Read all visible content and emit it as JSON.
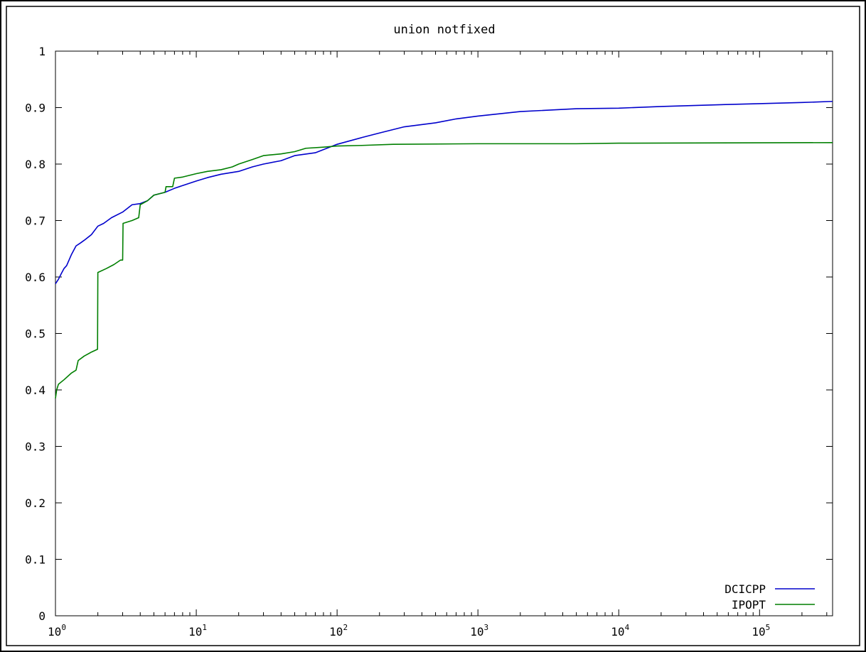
{
  "chart_data": {
    "type": "line",
    "title": "union notfixed",
    "xlabel": "",
    "ylabel": "",
    "x_scale": "log",
    "xlim": [
      1,
      330000
    ],
    "ylim": [
      0,
      1
    ],
    "grid": false,
    "legend_position": "bottom-right",
    "x_tick_labels": [
      {
        "base": "10",
        "exp": "0",
        "value": 1
      },
      {
        "base": "10",
        "exp": "1",
        "value": 10
      },
      {
        "base": "10",
        "exp": "2",
        "value": 100
      },
      {
        "base": "10",
        "exp": "3",
        "value": 1000
      },
      {
        "base": "10",
        "exp": "4",
        "value": 10000
      },
      {
        "base": "10",
        "exp": "5",
        "value": 100000
      }
    ],
    "y_tick_labels": [
      "0",
      "0.1",
      "0.2",
      "0.3",
      "0.4",
      "0.5",
      "0.6",
      "0.7",
      "0.8",
      "0.9",
      "1"
    ],
    "y_tick_values": [
      0,
      0.1,
      0.2,
      0.3,
      0.4,
      0.5,
      0.6,
      0.7,
      0.8,
      0.9,
      1
    ],
    "series": [
      {
        "name": "DCICPP",
        "color": "#0000cc",
        "points": [
          [
            1,
            0.588
          ],
          [
            1.05,
            0.596
          ],
          [
            1.1,
            0.606
          ],
          [
            1.15,
            0.615
          ],
          [
            1.2,
            0.62
          ],
          [
            1.3,
            0.64
          ],
          [
            1.4,
            0.655
          ],
          [
            1.5,
            0.66
          ],
          [
            1.6,
            0.665
          ],
          [
            1.8,
            0.675
          ],
          [
            2,
            0.69
          ],
          [
            2.2,
            0.695
          ],
          [
            2.5,
            0.705
          ],
          [
            3,
            0.715
          ],
          [
            3.5,
            0.728
          ],
          [
            4,
            0.73
          ],
          [
            4.5,
            0.735
          ],
          [
            5,
            0.745
          ],
          [
            6,
            0.75
          ],
          [
            7,
            0.757
          ],
          [
            8,
            0.762
          ],
          [
            10,
            0.77
          ],
          [
            12,
            0.776
          ],
          [
            15,
            0.782
          ],
          [
            20,
            0.787
          ],
          [
            25,
            0.795
          ],
          [
            30,
            0.8
          ],
          [
            40,
            0.806
          ],
          [
            50,
            0.815
          ],
          [
            70,
            0.82
          ],
          [
            100,
            0.835
          ],
          [
            150,
            0.847
          ],
          [
            200,
            0.855
          ],
          [
            300,
            0.866
          ],
          [
            500,
            0.873
          ],
          [
            700,
            0.88
          ],
          [
            1000,
            0.885
          ],
          [
            2000,
            0.893
          ],
          [
            5000,
            0.898
          ],
          [
            10000,
            0.899
          ],
          [
            20000,
            0.902
          ],
          [
            50000,
            0.905
          ],
          [
            100000,
            0.907
          ],
          [
            200000,
            0.909
          ],
          [
            330000,
            0.911
          ]
        ]
      },
      {
        "name": "IPOPT",
        "color": "#007f00",
        "points": [
          [
            1,
            0.385
          ],
          [
            1.02,
            0.4
          ],
          [
            1.05,
            0.41
          ],
          [
            1.15,
            0.418
          ],
          [
            1.3,
            0.43
          ],
          [
            1.4,
            0.435
          ],
          [
            1.45,
            0.452
          ],
          [
            1.6,
            0.46
          ],
          [
            1.8,
            0.467
          ],
          [
            1.99,
            0.472
          ],
          [
            2,
            0.608
          ],
          [
            2.3,
            0.615
          ],
          [
            2.6,
            0.622
          ],
          [
            2.9,
            0.63
          ],
          [
            3,
            0.63
          ],
          [
            3.02,
            0.695
          ],
          [
            3.5,
            0.7
          ],
          [
            3.9,
            0.705
          ],
          [
            4,
            0.728
          ],
          [
            4.5,
            0.735
          ],
          [
            5,
            0.745
          ],
          [
            6,
            0.75
          ],
          [
            6.1,
            0.76
          ],
          [
            6.8,
            0.76
          ],
          [
            7,
            0.775
          ],
          [
            8,
            0.777
          ],
          [
            10,
            0.783
          ],
          [
            12,
            0.787
          ],
          [
            15,
            0.79
          ],
          [
            18,
            0.795
          ],
          [
            20,
            0.8
          ],
          [
            25,
            0.808
          ],
          [
            30,
            0.815
          ],
          [
            40,
            0.818
          ],
          [
            50,
            0.822
          ],
          [
            60,
            0.828
          ],
          [
            80,
            0.83
          ],
          [
            100,
            0.832
          ],
          [
            150,
            0.833
          ],
          [
            250,
            0.835
          ],
          [
            1000,
            0.836
          ],
          [
            5000,
            0.836
          ],
          [
            10000,
            0.837
          ],
          [
            330000,
            0.838
          ]
        ]
      }
    ]
  }
}
